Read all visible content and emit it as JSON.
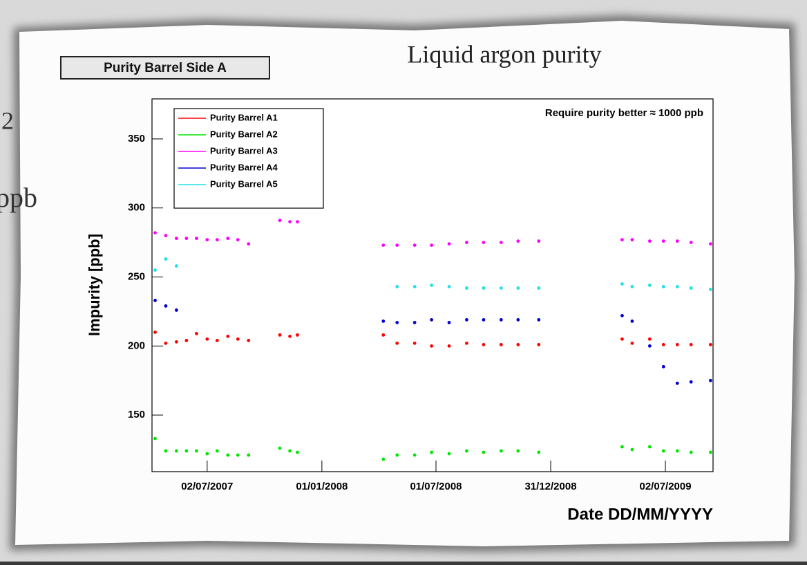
{
  "slide_fragments": [
    "2",
    "ppb"
  ],
  "chart_data": {
    "type": "scatter",
    "title": "Liquid argon purity",
    "subtitle": "Purity Barrel Side A",
    "annotation": "Require purity better ≈ 1000 ppb",
    "x_label": "Date DD/MM/YYYY",
    "y_label": "Impurity [ppb]",
    "x": [
      "2007-04-10",
      "2007-04-27",
      "2007-05-14",
      "2007-05-30",
      "2007-06-15",
      "2007-07-02",
      "2007-07-18",
      "2007-08-04",
      "2007-08-20",
      "2007-09-06",
      "2007-10-26",
      "2007-11-11",
      "2007-11-23",
      "2008-04-08",
      "2008-04-30",
      "2008-05-28",
      "2008-06-24",
      "2008-07-22",
      "2008-08-19",
      "2008-09-15",
      "2008-10-13",
      "2008-11-09",
      "2008-12-12",
      "2009-04-24",
      "2009-05-10",
      "2009-06-07",
      "2009-06-29",
      "2009-07-21",
      "2009-08-12",
      "2009-09-12"
    ],
    "series": [
      {
        "name": "Purity Barrel A1",
        "color": "#ff0000",
        "values": [
          210,
          202,
          203,
          204,
          209,
          205,
          204,
          207,
          205,
          204,
          208,
          207,
          208,
          208,
          202,
          202,
          200,
          200,
          202,
          201,
          201,
          201,
          201,
          205,
          202,
          205,
          201,
          201,
          201,
          201
        ]
      },
      {
        "name": "Purity Barrel A2",
        "color": "#00e600",
        "values": [
          133,
          124,
          124,
          124,
          124,
          122,
          124,
          121,
          121,
          121,
          126,
          124,
          123,
          118,
          121,
          121,
          123,
          122,
          124,
          123,
          124,
          124,
          123,
          127,
          125,
          127,
          124,
          124,
          123,
          123
        ]
      },
      {
        "name": "Purity Barrel A3",
        "color": "#ff00ff",
        "values": [
          282,
          280,
          278,
          278,
          278,
          277,
          277,
          278,
          277,
          274,
          291,
          290,
          290,
          273,
          273,
          273,
          273,
          274,
          275,
          275,
          275,
          276,
          276,
          277,
          277,
          276,
          276,
          276,
          275,
          274
        ]
      },
      {
        "name": "Purity Barrel A4",
        "color": "#0000d0",
        "values": [
          233,
          229,
          226,
          null,
          null,
          null,
          null,
          null,
          null,
          null,
          null,
          null,
          null,
          218,
          217,
          217,
          219,
          217,
          219,
          219,
          219,
          219,
          219,
          222,
          218,
          200,
          185,
          173,
          174,
          175
        ]
      },
      {
        "name": "Purity Barrel A5",
        "color": "#20e0e8",
        "values": [
          255,
          263,
          258,
          null,
          null,
          null,
          null,
          null,
          null,
          null,
          null,
          null,
          null,
          null,
          243,
          243,
          244,
          243,
          242,
          242,
          242,
          242,
          242,
          245,
          243,
          244,
          243,
          243,
          242,
          241
        ]
      }
    ],
    "xlim": [
      "2007-04-05",
      "2009-09-16"
    ],
    "xticks": [
      {
        "value": "2007-07-02",
        "label": "02/07/2007"
      },
      {
        "value": "2008-01-01",
        "label": "01/01/2008"
      },
      {
        "value": "2008-07-01",
        "label": "01/07/2008"
      },
      {
        "value": "2008-12-31",
        "label": "31/12/2008"
      },
      {
        "value": "2009-07-02",
        "label": "02/07/2009"
      }
    ],
    "ylim": [
      109,
      379
    ],
    "yticks": [
      150,
      200,
      250,
      300,
      350
    ],
    "legend": "top-left"
  }
}
